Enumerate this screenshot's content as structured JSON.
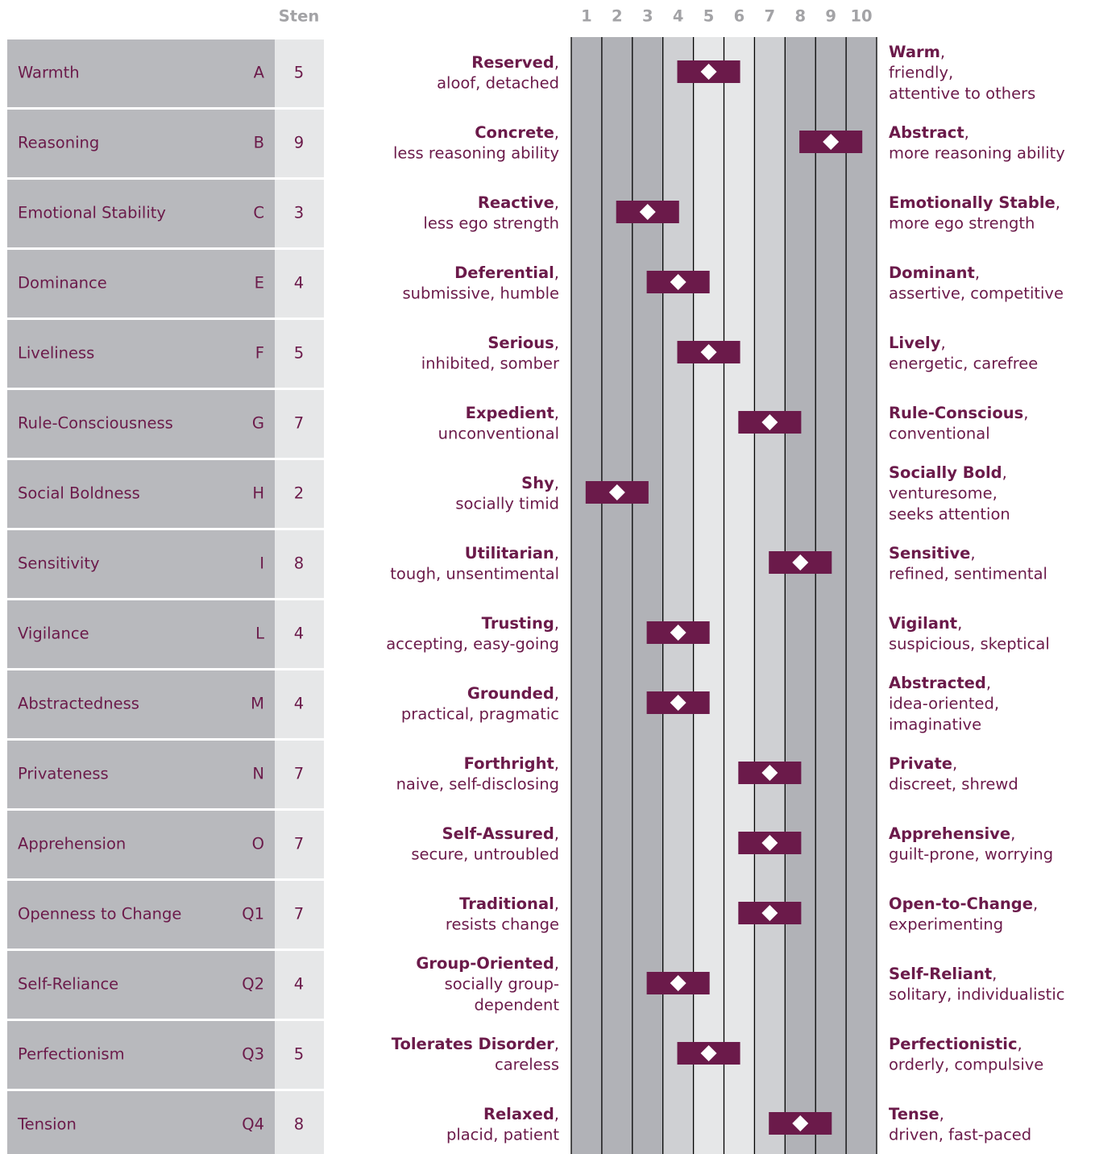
{
  "chart_data": {
    "type": "profile",
    "value_header": "Sten",
    "color": "#6b1a4a",
    "xlim": [
      0.5,
      10.5
    ],
    "xticks": [
      1,
      2,
      3,
      4,
      5,
      6,
      7,
      8,
      9,
      10
    ],
    "categories": [
      "Warmth",
      "Reasoning",
      "Emotional Stability",
      "Dominance",
      "Liveliness",
      "Rule-Consciousness",
      "Social Boldness",
      "Sensitivity",
      "Vigilance",
      "Abstractedness",
      "Privateness",
      "Apprehension",
      "Openness to Change",
      "Self-Reliance",
      "Perfectionism",
      "Tension"
    ],
    "letters": [
      "A",
      "B",
      "C",
      "E",
      "F",
      "G",
      "H",
      "I",
      "L",
      "M",
      "N",
      "O",
      "Q1",
      "Q2",
      "Q3",
      "Q4"
    ],
    "values": [
      5,
      9,
      3,
      4,
      5,
      7,
      2,
      8,
      4,
      4,
      7,
      7,
      7,
      4,
      5,
      8
    ],
    "low_poles": [
      {
        "term": "Reserved",
        "sep": ",",
        "desc": [
          "aloof, detached"
        ]
      },
      {
        "term": "Concrete",
        "sep": ",",
        "desc": [
          "less reasoning ability"
        ]
      },
      {
        "term": "Reactive",
        "sep": ",",
        "desc": [
          "less ego strength"
        ]
      },
      {
        "term": "Deferential",
        "sep": ",",
        "desc": [
          "submissive, humble"
        ]
      },
      {
        "term": "Serious",
        "sep": ",",
        "desc": [
          "inhibited, somber"
        ]
      },
      {
        "term": "Expedient",
        "sep": ",",
        "desc": [
          "unconventional"
        ]
      },
      {
        "term": "Shy",
        "sep": ",",
        "desc": [
          "socially timid"
        ]
      },
      {
        "term": "Utilitarian",
        "sep": ",",
        "desc": [
          "tough, unsentimental"
        ]
      },
      {
        "term": "Trusting",
        "sep": ",",
        "desc": [
          "accepting, easy-going"
        ]
      },
      {
        "term": "Grounded",
        "sep": ",",
        "desc": [
          "practical, pragmatic"
        ]
      },
      {
        "term": "Forthright",
        "sep": ",",
        "desc": [
          "naive, self-disclosing"
        ]
      },
      {
        "term": "Self-Assured",
        "sep": ",",
        "desc": [
          "secure, untroubled"
        ]
      },
      {
        "term": "Traditional",
        "sep": ",",
        "desc": [
          "resists change"
        ]
      },
      {
        "term": "Group-Oriented",
        "sep": ",",
        "desc": [
          "socially group-",
          "dependent"
        ]
      },
      {
        "term": "Tolerates Disorder",
        "sep": ",",
        "desc": [
          "careless"
        ]
      },
      {
        "term": "Relaxed",
        "sep": ",",
        "desc": [
          "placid, patient"
        ]
      }
    ],
    "high_poles": [
      {
        "term": "Warm",
        "sep": ",",
        "desc": [
          "friendly,",
          "attentive to others"
        ]
      },
      {
        "term": "Abstract",
        "sep": ",",
        "desc": [
          "more reasoning ability"
        ]
      },
      {
        "term": "Emotionally Stable",
        "sep": ",",
        "desc": [
          "more ego strength"
        ]
      },
      {
        "term": "Dominant",
        "sep": ",",
        "desc": [
          "assertive, competitive"
        ]
      },
      {
        "term": "Lively",
        "sep": ",",
        "desc": [
          "energetic, carefree"
        ]
      },
      {
        "term": "Rule-Conscious",
        "sep": ",",
        "desc": [
          "conventional"
        ]
      },
      {
        "term": "Socially Bold",
        "sep": ",",
        "desc": [
          "venturesome,",
          "seeks attention"
        ]
      },
      {
        "term": "Sensitive",
        "sep": ",",
        "desc": [
          "refined, sentimental"
        ]
      },
      {
        "term": "Vigilant",
        "sep": ",",
        "desc": [
          "suspicious, skeptical"
        ]
      },
      {
        "term": "Abstracted",
        "sep": ",",
        "desc": [
          "idea-oriented,",
          "imaginative"
        ]
      },
      {
        "term": "Private",
        "sep": ",",
        "desc": [
          "discreet, shrewd"
        ]
      },
      {
        "term": "Apprehensive",
        "sep": ",",
        "desc": [
          "guilt-prone, worrying"
        ]
      },
      {
        "term": "Open-to-Change",
        "sep": ",",
        "desc": [
          "experimenting"
        ]
      },
      {
        "term": "Self-Reliant",
        "sep": ",",
        "desc": [
          "solitary, individualistic"
        ]
      },
      {
        "term": "Perfectionistic",
        "sep": ",",
        "desc": [
          "orderly, compulsive"
        ]
      },
      {
        "term": "Tense",
        "sep": ",",
        "desc": [
          "driven, fast-paced"
        ]
      }
    ]
  }
}
